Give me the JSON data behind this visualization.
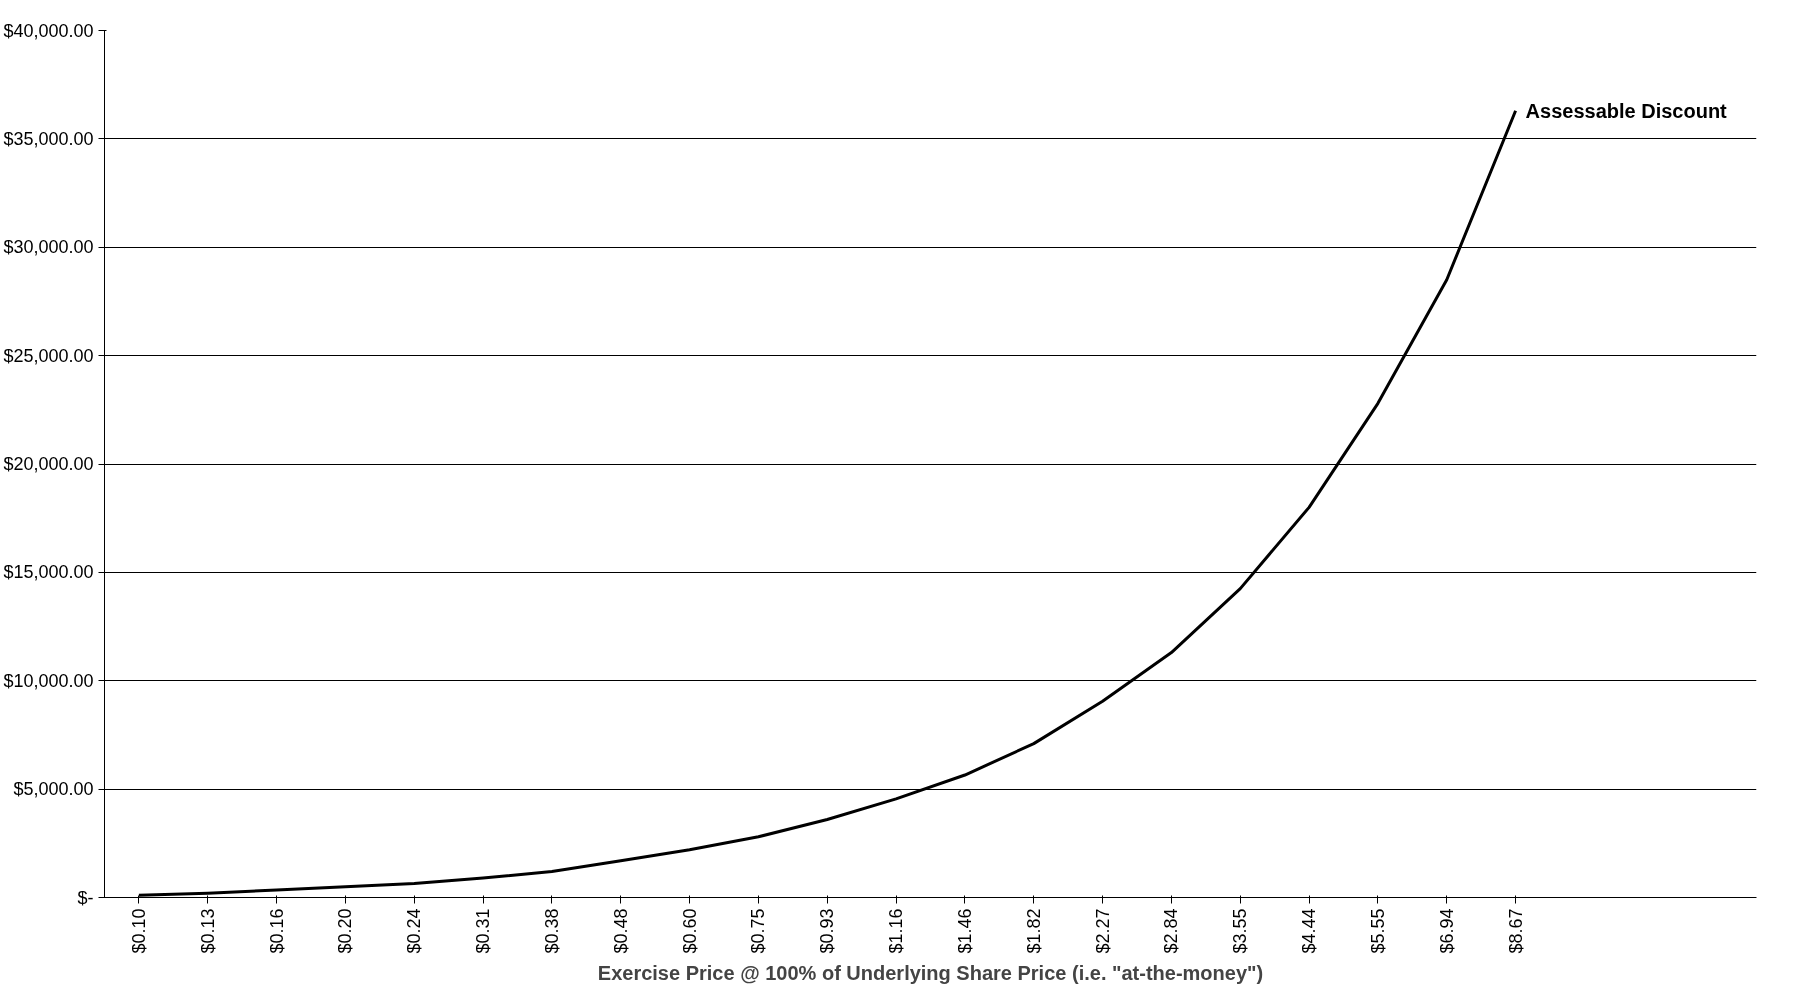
{
  "chart_data": {
    "type": "line",
    "xlabel": "Exercise Price @ 100% of Underlying Share Price (i.e. \"at-the-money\")",
    "categories": [
      "$0.10",
      "$0.13",
      "$0.16",
      "$0.20",
      "$0.24",
      "$0.31",
      "$0.38",
      "$0.48",
      "$0.60",
      "$0.75",
      "$0.93",
      "$1.16",
      "$1.46",
      "$1.82",
      "$2.27",
      "$2.84",
      "$3.55",
      "$4.44",
      "$5.55",
      "$6.94",
      "$8.67"
    ],
    "series": [
      {
        "name": "Assessable Discount",
        "color": "#000000",
        "values": [
          100,
          200,
          350,
          500,
          650,
          900,
          1200,
          1700,
          2200,
          2800,
          3600,
          4550,
          5650,
          7100,
          9050,
          11300,
          14250,
          18000,
          22800,
          28500,
          36300
        ]
      }
    ],
    "ylim": [
      0,
      40000
    ],
    "yticks": [
      {
        "value": 0,
        "label": "$-"
      },
      {
        "value": 5000,
        "label": "$5,000.00"
      },
      {
        "value": 10000,
        "label": "$10,000.00"
      },
      {
        "value": 15000,
        "label": "$15,000.00"
      },
      {
        "value": 20000,
        "label": "$20,000.00"
      },
      {
        "value": 25000,
        "label": "$25,000.00"
      },
      {
        "value": 30000,
        "label": "$30,000.00"
      },
      {
        "value": 35000,
        "label": "$35,000.00"
      },
      {
        "value": 40000,
        "label": "$40,000.00"
      }
    ],
    "grid": "y",
    "marker": "none",
    "line_style": "solid"
  }
}
